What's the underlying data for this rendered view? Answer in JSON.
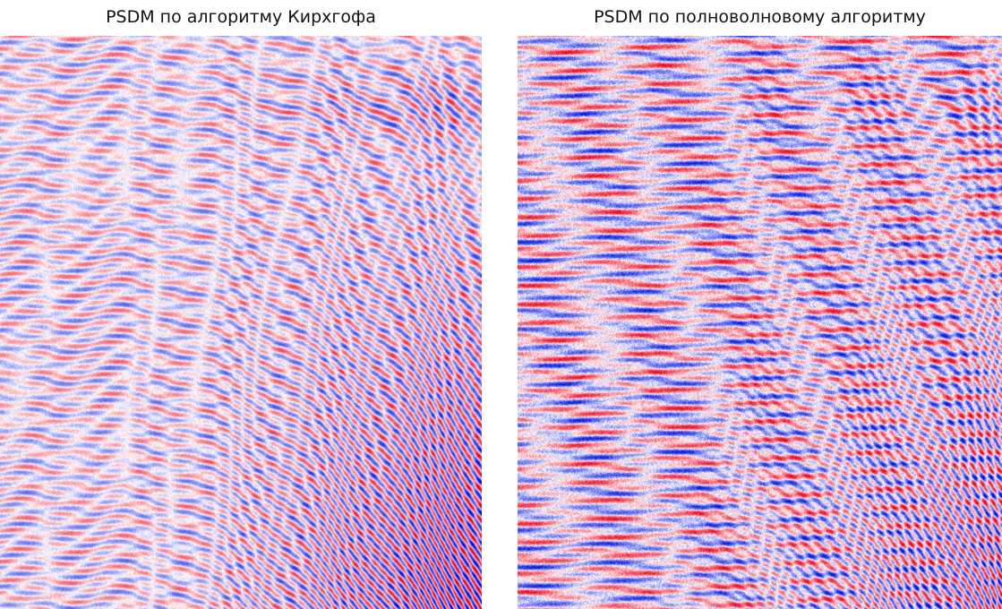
{
  "panels": [
    {
      "title": "PSDM по алгоритму Кирхгофа",
      "image": "seismic-section-kirchhoff",
      "colors": {
        "positive": "#e8001c",
        "negative": "#0010e0",
        "background": "#ffffff"
      },
      "noise_level": 0.35
    },
    {
      "title": "PSDM по полноволновому алгоритму",
      "image": "seismic-section-full-wave",
      "colors": {
        "positive": "#e8001c",
        "negative": "#0010e0",
        "background": "#ffffff"
      },
      "noise_level": 0.85
    }
  ]
}
